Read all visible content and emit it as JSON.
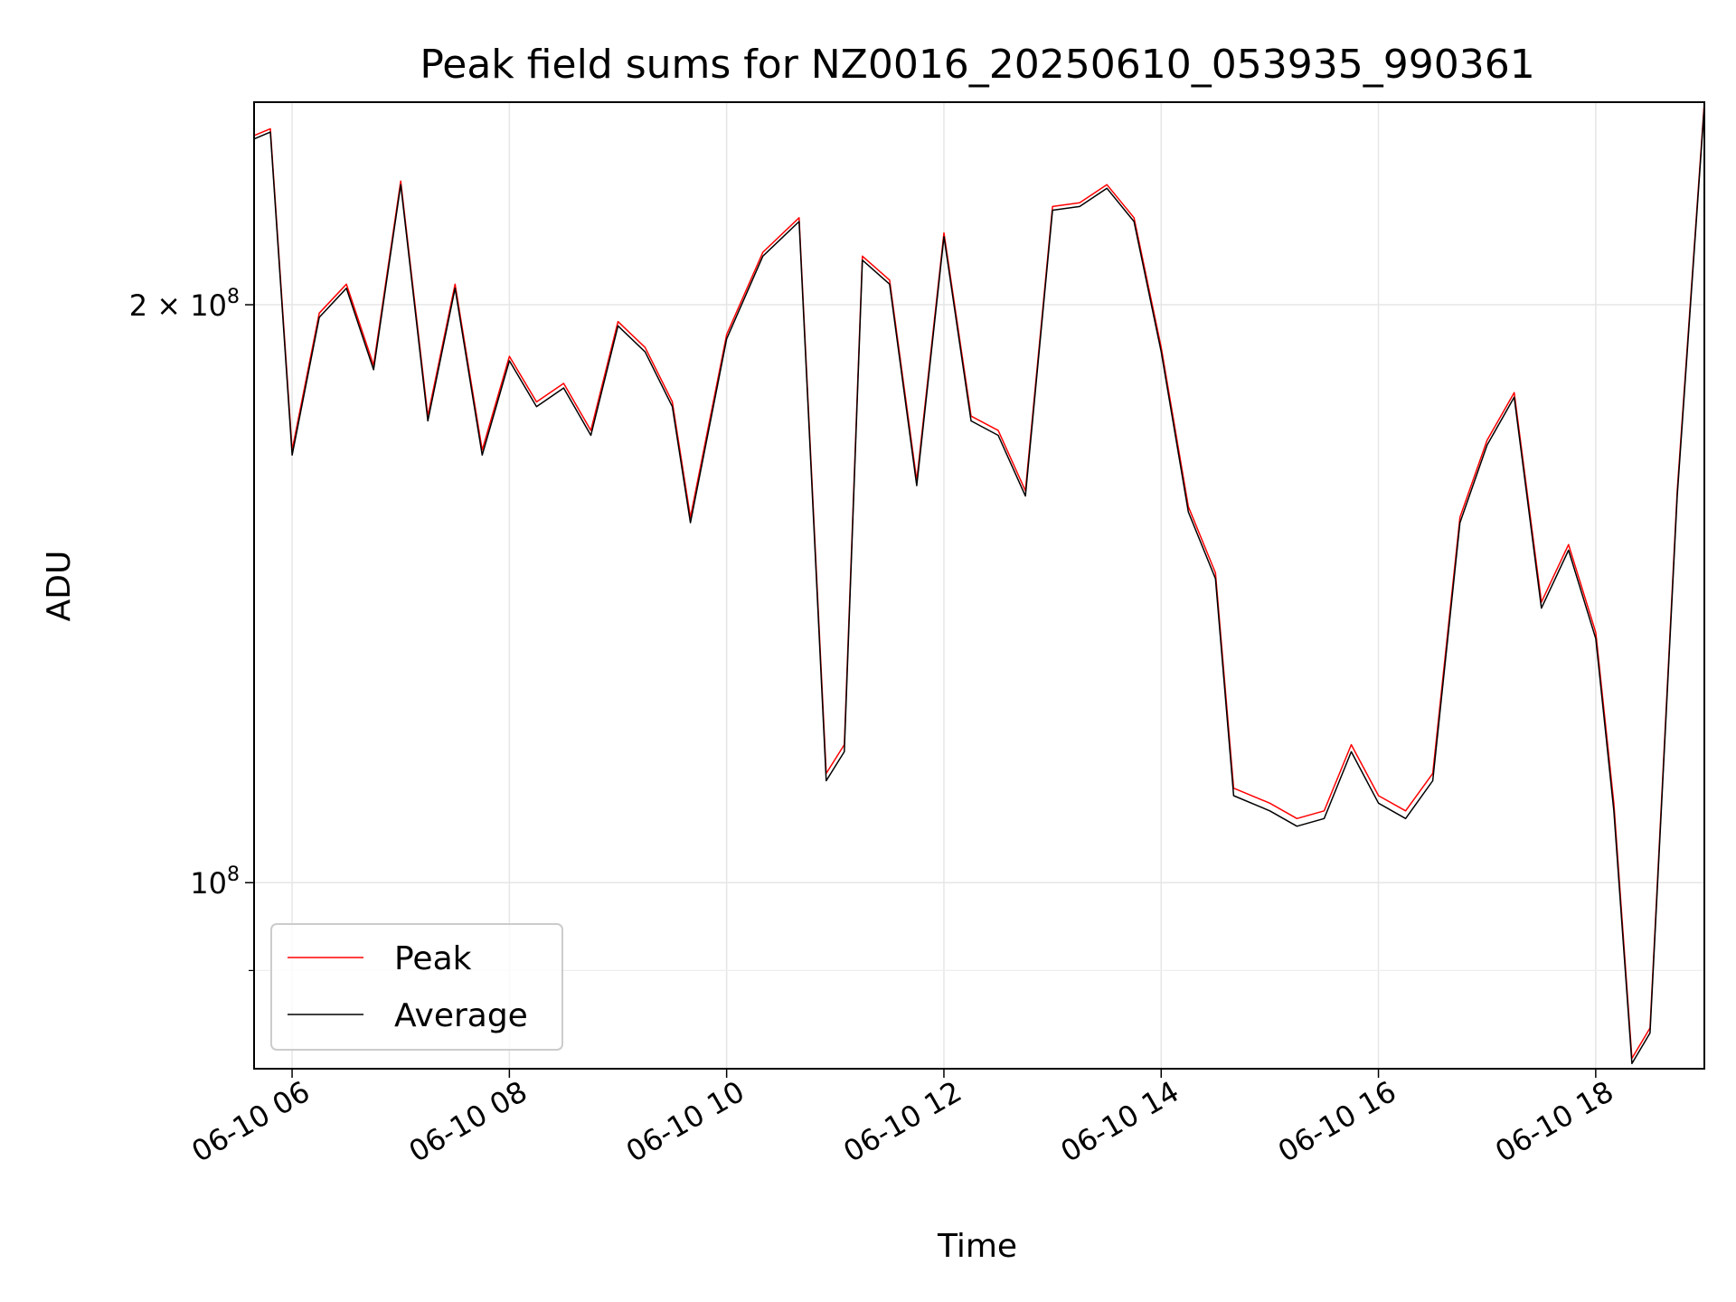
{
  "chart_data": {
    "type": "line",
    "title": "Peak field sums for NZ0016_20250610_053935_990361",
    "xlabel": "Time",
    "ylabel": "ADU",
    "yscale": "log",
    "xlim": [
      "06-10 05:39",
      "06-10 19:00"
    ],
    "ylim": [
      80000000,
      255000000
    ],
    "x_ticks": [
      {
        "label": "06-10 06",
        "value": "06-10 06:00"
      },
      {
        "label": "06-10 08",
        "value": "06-10 08:00"
      },
      {
        "label": "06-10 10",
        "value": "06-10 10:00"
      },
      {
        "label": "06-10 12",
        "value": "06-10 12:00"
      },
      {
        "label": "06-10 14",
        "value": "06-10 14:00"
      },
      {
        "label": "06-10 16",
        "value": "06-10 16:00"
      },
      {
        "label": "06-10 18",
        "value": "06-10 18:00"
      }
    ],
    "y_major_ticks": [
      {
        "label_base": "10",
        "label_exp": "8",
        "label_mult": "",
        "value": 100000000
      },
      {
        "label_base": "10",
        "label_exp": "8",
        "label_mult": "2 × ",
        "value": 200000000
      }
    ],
    "y_minor_ticks": [
      90000000
    ],
    "grid": true,
    "legend_position": "lower-left",
    "x": [
      "06-10 05:39",
      "06-10 05:48",
      "06-10 06:00",
      "06-10 06:15",
      "06-10 06:30",
      "06-10 06:45",
      "06-10 07:00",
      "06-10 07:15",
      "06-10 07:30",
      "06-10 07:45",
      "06-10 08:00",
      "06-10 08:15",
      "06-10 08:30",
      "06-10 08:45",
      "06-10 09:00",
      "06-10 09:15",
      "06-10 09:30",
      "06-10 09:40",
      "06-10 10:00",
      "06-10 10:20",
      "06-10 10:40",
      "06-10 10:55",
      "06-10 11:05",
      "06-10 11:15",
      "06-10 11:30",
      "06-10 11:45",
      "06-10 12:00",
      "06-10 12:15",
      "06-10 12:30",
      "06-10 12:45",
      "06-10 13:00",
      "06-10 13:15",
      "06-10 13:30",
      "06-10 13:45",
      "06-10 14:00",
      "06-10 14:15",
      "06-10 14:30",
      "06-10 14:40",
      "06-10 15:00",
      "06-10 15:15",
      "06-10 15:30",
      "06-10 15:45",
      "06-10 16:00",
      "06-10 16:15",
      "06-10 16:30",
      "06-10 16:45",
      "06-10 17:00",
      "06-10 17:15",
      "06-10 17:30",
      "06-10 17:45",
      "06-10 18:00",
      "06-10 18:10",
      "06-10 18:20",
      "06-10 18:30",
      "06-10 18:45",
      "06-10 19:00"
    ],
    "series": [
      {
        "name": "Peak",
        "color": "#ff0000",
        "values": [
          245000000,
          247000000,
          168000000,
          198000000,
          205000000,
          186000000,
          232000000,
          175000000,
          205000000,
          168000000,
          188000000,
          178000000,
          182000000,
          172000000,
          196000000,
          190000000,
          178000000,
          155000000,
          193000000,
          213000000,
          222000000,
          114000000,
          118000000,
          212000000,
          206000000,
          162000000,
          218000000,
          175000000,
          172000000,
          160000000,
          225000000,
          226000000,
          231000000,
          222000000,
          190000000,
          157000000,
          145000000,
          112000000,
          110000000,
          108000000,
          109000000,
          118000000,
          111000000,
          109000000,
          114000000,
          155000000,
          170000000,
          180000000,
          140000000,
          150000000,
          135000000,
          110000000,
          81000000,
          84000000,
          160000000,
          255000000
        ]
      },
      {
        "name": "Average",
        "color": "#000000",
        "values": [
          244000000,
          246000000,
          167000000,
          197000000,
          204000000,
          185000000,
          231000000,
          174000000,
          204000000,
          167000000,
          187000000,
          177000000,
          181000000,
          171000000,
          195000000,
          189000000,
          177000000,
          154000000,
          192000000,
          212000000,
          221000000,
          113000000,
          117000000,
          211000000,
          205000000,
          161000000,
          217000000,
          174000000,
          171000000,
          159000000,
          224000000,
          225000000,
          230000000,
          221000000,
          189000000,
          156000000,
          144000000,
          111000000,
          109000000,
          107000000,
          108000000,
          117000000,
          110000000,
          108000000,
          113000000,
          154000000,
          169000000,
          179000000,
          139000000,
          149000000,
          134000000,
          109000000,
          80500000,
          83500000,
          159000000,
          254000000
        ]
      }
    ]
  }
}
